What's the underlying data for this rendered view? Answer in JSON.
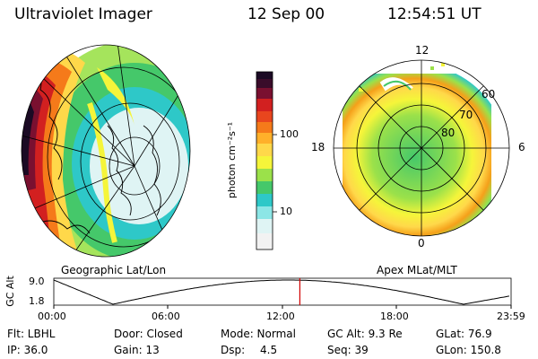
{
  "header": {
    "instrument": "Ultraviolet Imager",
    "date": "12 Sep 00",
    "time": "12:54:51 UT"
  },
  "left_panel": {
    "caption": "Geographic Lat/Lon"
  },
  "right_panel": {
    "caption": "Apex MLat/MLT",
    "mlt_labels": [
      "12",
      "18",
      "6",
      "0"
    ],
    "lat_labels": [
      "60",
      "70",
      "80"
    ]
  },
  "colorbar": {
    "unit_label": "photon cm⁻²s⁻¹",
    "scale": "log",
    "ticks": [
      "100",
      "10"
    ],
    "colors": [
      "#1b0a24",
      "#7a1030",
      "#d22020",
      "#f57a1a",
      "#ffd84a",
      "#f5f53a",
      "#9be14a",
      "#45c86a",
      "#2ec8c8",
      "#8ce6e6",
      "#dff4f4"
    ]
  },
  "altitude_plot": {
    "ylabel": "GC Alt",
    "y_ticks": [
      "9.0",
      "1.8"
    ],
    "x_ticks": [
      "00:00",
      "06:00",
      "12:00",
      "18:00",
      "23:59"
    ],
    "marker_color": "#d00000",
    "marker_time_hours": 12.914
  },
  "info": {
    "filter": "Flt: LBHL",
    "door": "Door: Closed",
    "mode": "Mode: Normal",
    "gc_alt": "GC Alt: 9.3 Re",
    "glat": "GLat: 76.9",
    "ip": "IP: 36.0",
    "gain": "Gain: 13",
    "dsp_label": "Dsp:",
    "dsp_value": "4.5",
    "seq": "Seq: 39",
    "glon": "GLon: 150.8"
  }
}
